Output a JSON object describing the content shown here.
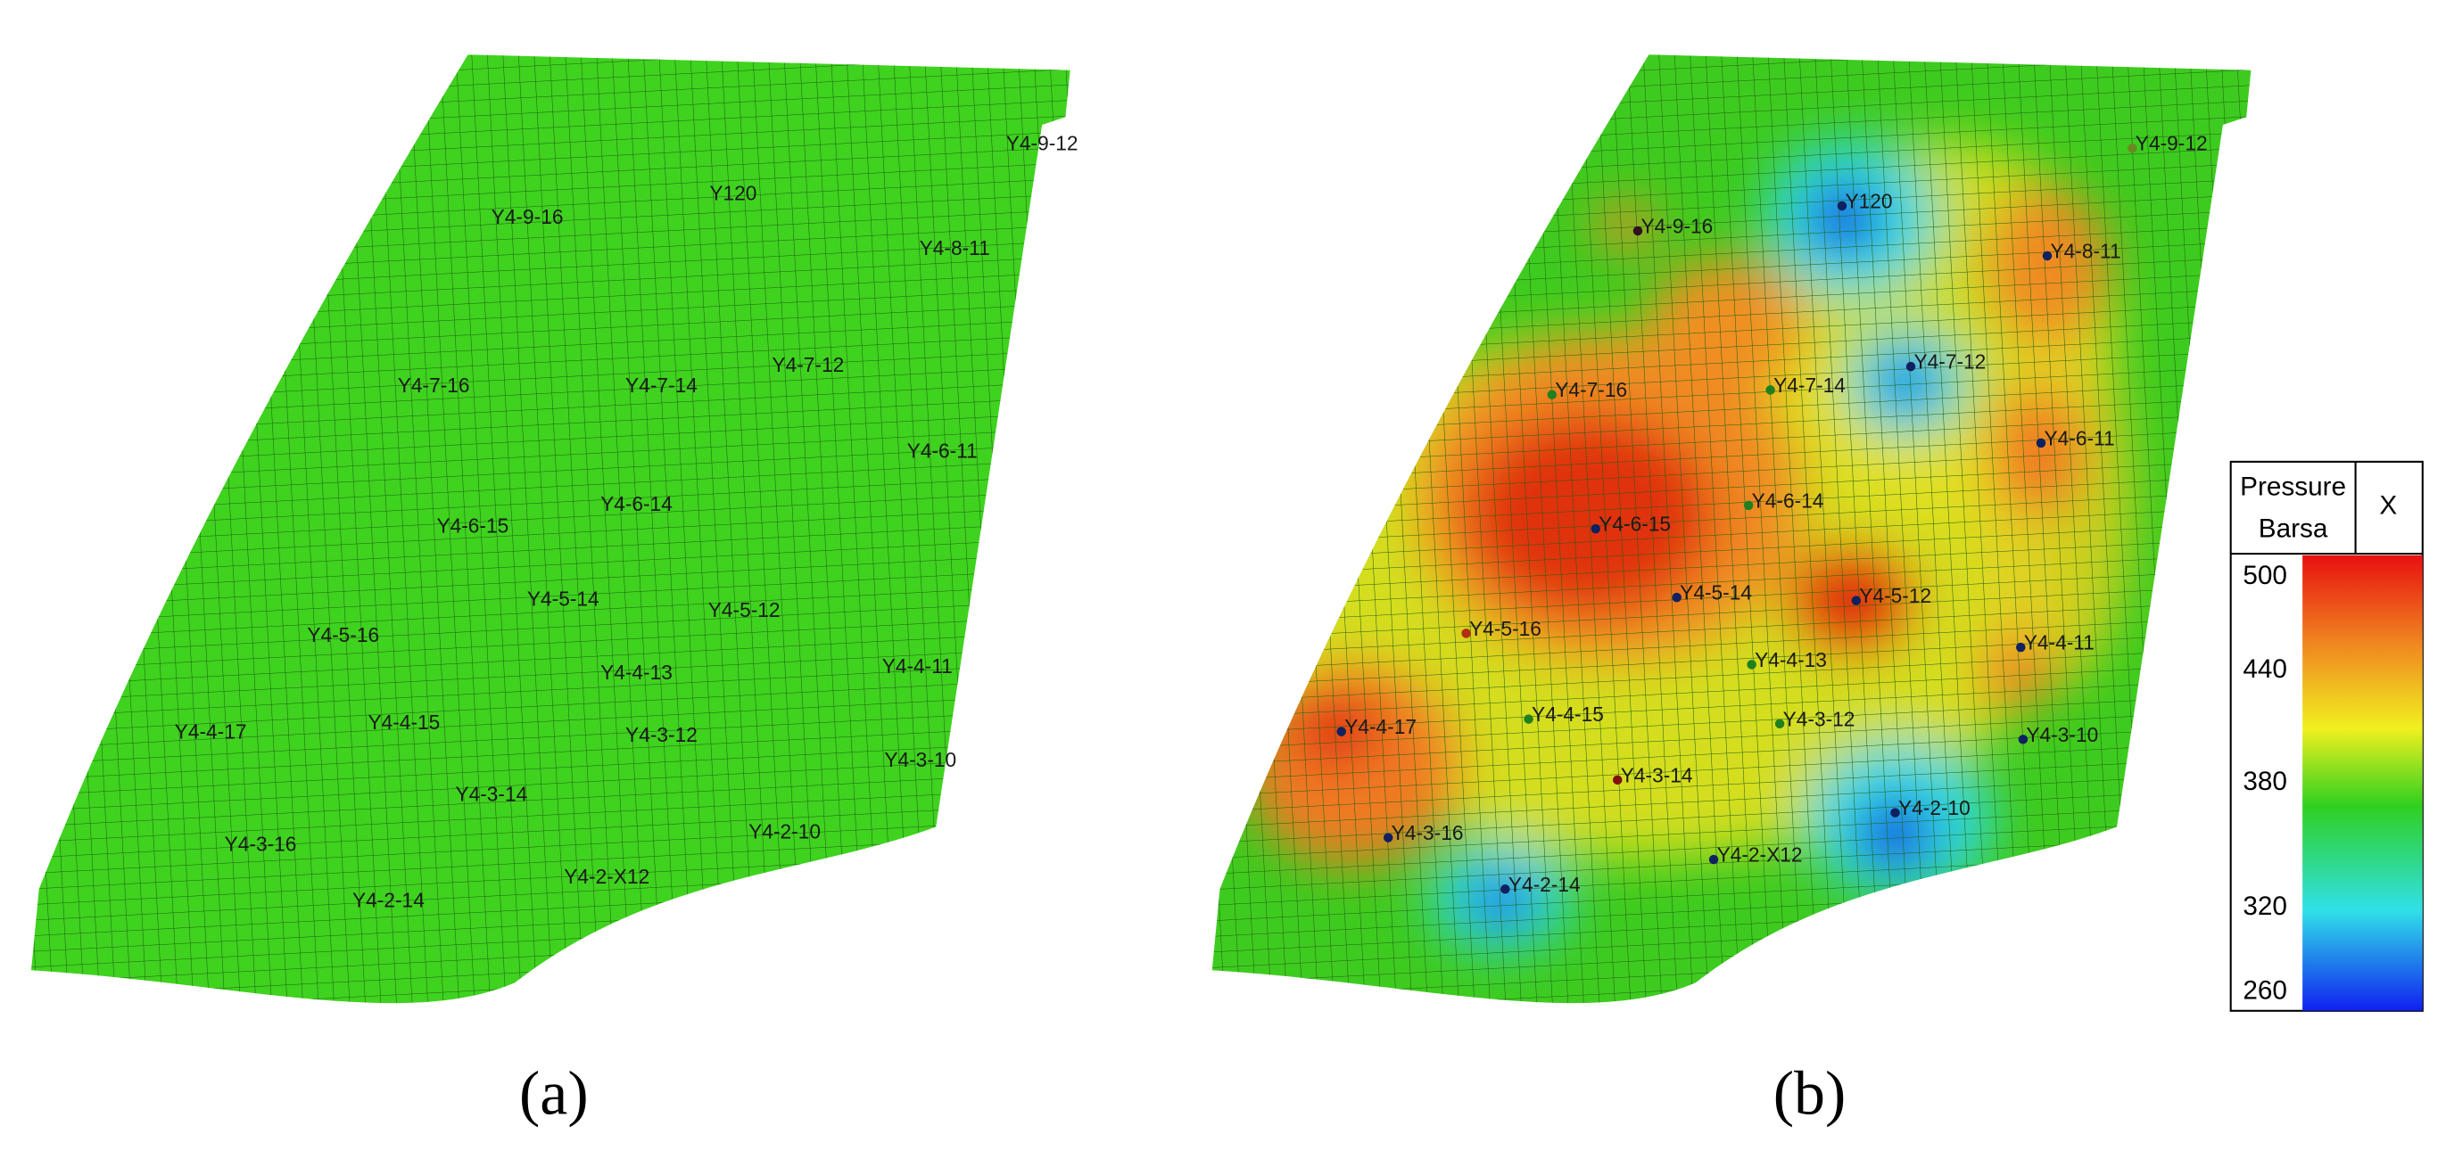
{
  "panels": [
    {
      "caption": "(a)",
      "wells": [
        "Y4-9-12",
        "Y120",
        "Y4-9-16",
        "Y4-8-11",
        "Y4-7-16",
        "Y4-7-14",
        "Y4-7-12",
        "Y4-6-11",
        "Y4-6-15",
        "Y4-6-14",
        "Y4-5-14",
        "Y4-5-12",
        "Y4-5-16",
        "Y4-4-13",
        "Y4-4-11",
        "Y4-4-17",
        "Y4-4-15",
        "Y4-3-12",
        "Y4-3-10",
        "Y4-3-14",
        "Y4-3-16",
        "Y4-2-10",
        "Y4-2-14",
        "Y4-2-X12"
      ]
    },
    {
      "caption": "(b)",
      "wells": [
        "Y4-9-12",
        "Y120",
        "Y4-9-16",
        "Y4-8-11",
        "Y4-7-16",
        "Y4-7-14",
        "Y4-7-12",
        "Y4-6-11",
        "Y4-6-15",
        "Y4-6-14",
        "Y4-5-14",
        "Y4-5-12",
        "Y4-5-16",
        "Y4-4-13",
        "Y4-4-11",
        "Y4-4-17",
        "Y4-4-15",
        "Y4-3-12",
        "Y4-3-10",
        "Y4-3-14",
        "Y4-3-16",
        "Y4-2-10",
        "Y4-2-14",
        "Y4-2-X12"
      ]
    }
  ],
  "legend": {
    "title": "Pressure",
    "unit": "Barsa",
    "close": "X",
    "ticks": [
      "500",
      "440",
      "380",
      "320",
      "260"
    ]
  }
}
